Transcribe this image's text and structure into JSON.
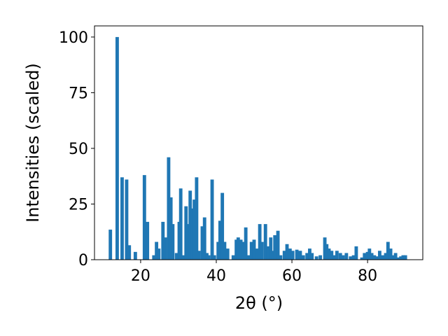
{
  "chart_data": {
    "type": "bar",
    "xlabel": "2θ (°)",
    "ylabel": "Intensities (scaled)",
    "color": "#1f77b4",
    "x": [
      12.0,
      13.8,
      15.1,
      16.3,
      17.0,
      18.6,
      21.0,
      21.8,
      23.5,
      24.2,
      24.8,
      25.9,
      26.5,
      27.4,
      28.0,
      28.5,
      29.5,
      30.2,
      30.6,
      31.3,
      32.0,
      32.6,
      33.1,
      33.7,
      34.2,
      34.8,
      35.4,
      36.3,
      36.9,
      37.5,
      38.0,
      38.9,
      39.5,
      40.5,
      41.0,
      41.6,
      42.2,
      43.0,
      44.5,
      45.3,
      45.8,
      46.5,
      47.3,
      47.8,
      48.5,
      49.3,
      50.0,
      50.7,
      51.5,
      52.1,
      53.0,
      53.6,
      54.4,
      55.0,
      55.5,
      56.3,
      57.0,
      58.0,
      58.7,
      59.5,
      60.2,
      61.3,
      62.2,
      63.0,
      64.0,
      64.7,
      65.3,
      66.5,
      67.5,
      68.7,
      69.2,
      69.8,
      70.5,
      71.2,
      71.9,
      72.8,
      73.5,
      74.4,
      75.5,
      76.3,
      77.0,
      78.5,
      79.2,
      80.0,
      80.5,
      81.1,
      81.8,
      82.6,
      83.2,
      84.0,
      84.8,
      85.4,
      86.1,
      86.9,
      87.4,
      88.0,
      88.8,
      89.4,
      90.0
    ],
    "values": [
      13.5,
      100,
      37,
      36,
      6.5,
      3.5,
      38,
      17,
      2,
      8,
      5,
      17,
      10,
      46,
      28,
      16,
      3,
      17,
      32,
      2,
      24,
      16,
      31,
      23,
      27,
      37,
      4,
      15,
      19,
      3,
      2,
      36,
      2,
      8,
      17.5,
      30,
      8,
      5,
      2,
      9,
      10,
      9,
      8,
      14.5,
      2,
      8,
      9,
      5,
      16,
      8,
      16,
      6,
      10,
      4,
      11,
      13,
      2,
      4,
      7,
      5,
      4,
      4.5,
      4,
      2,
      3,
      5,
      3,
      1.5,
      2,
      10,
      7,
      5,
      4,
      2,
      4,
      3,
      2,
      3,
      1.5,
      2,
      6,
      1,
      3,
      3.5,
      5,
      3,
      2,
      1.5,
      4,
      2,
      3,
      8,
      5,
      2,
      3,
      1,
      1.5,
      2,
      2
    ],
    "xlim": [
      7.8,
      94.6
    ],
    "ylim": [
      0,
      105
    ],
    "xticks": [
      20,
      40,
      60,
      80
    ],
    "yticks": [
      0,
      25,
      50,
      75,
      100
    ]
  }
}
